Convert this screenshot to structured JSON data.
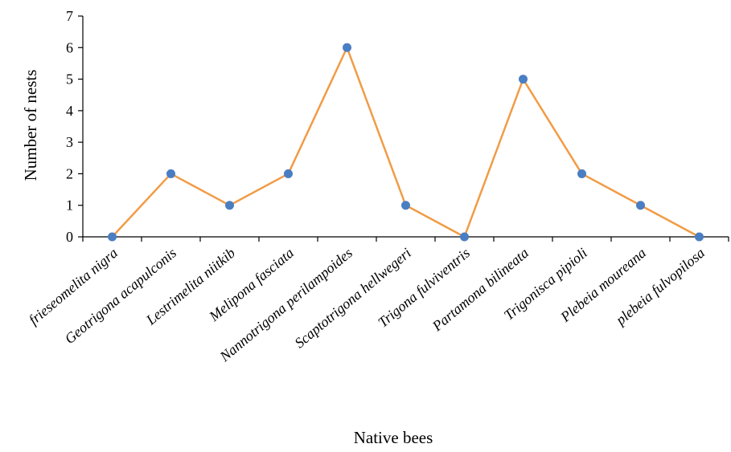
{
  "chart_data": {
    "type": "line",
    "xlabel": "Native bees",
    "ylabel": "Number of nests",
    "ylim": [
      0,
      7
    ],
    "yticks": [
      "0",
      "1",
      "2",
      "3",
      "4",
      "5",
      "6",
      "7"
    ],
    "grid": false,
    "categories": [
      "frieseomelita nigra",
      "Geotrigona acapulconis",
      "Lestrimelita niitkib",
      "Melipona fasciata",
      "Nannotrigona perilampoides",
      "Scaptotrigona hellwegeri",
      "Trigona fulviventris",
      "Partamona bilineata",
      "Trigonisca pipioli",
      "Plebeia moureana",
      "plebeia fulvopilosa"
    ],
    "series": [
      {
        "values": [
          0,
          2,
          1,
          2,
          6,
          1,
          0,
          5,
          2,
          1,
          0
        ]
      }
    ],
    "colors": {
      "line": "#F29B46",
      "marker": "#4A7EC2",
      "axis": "#000000"
    }
  }
}
